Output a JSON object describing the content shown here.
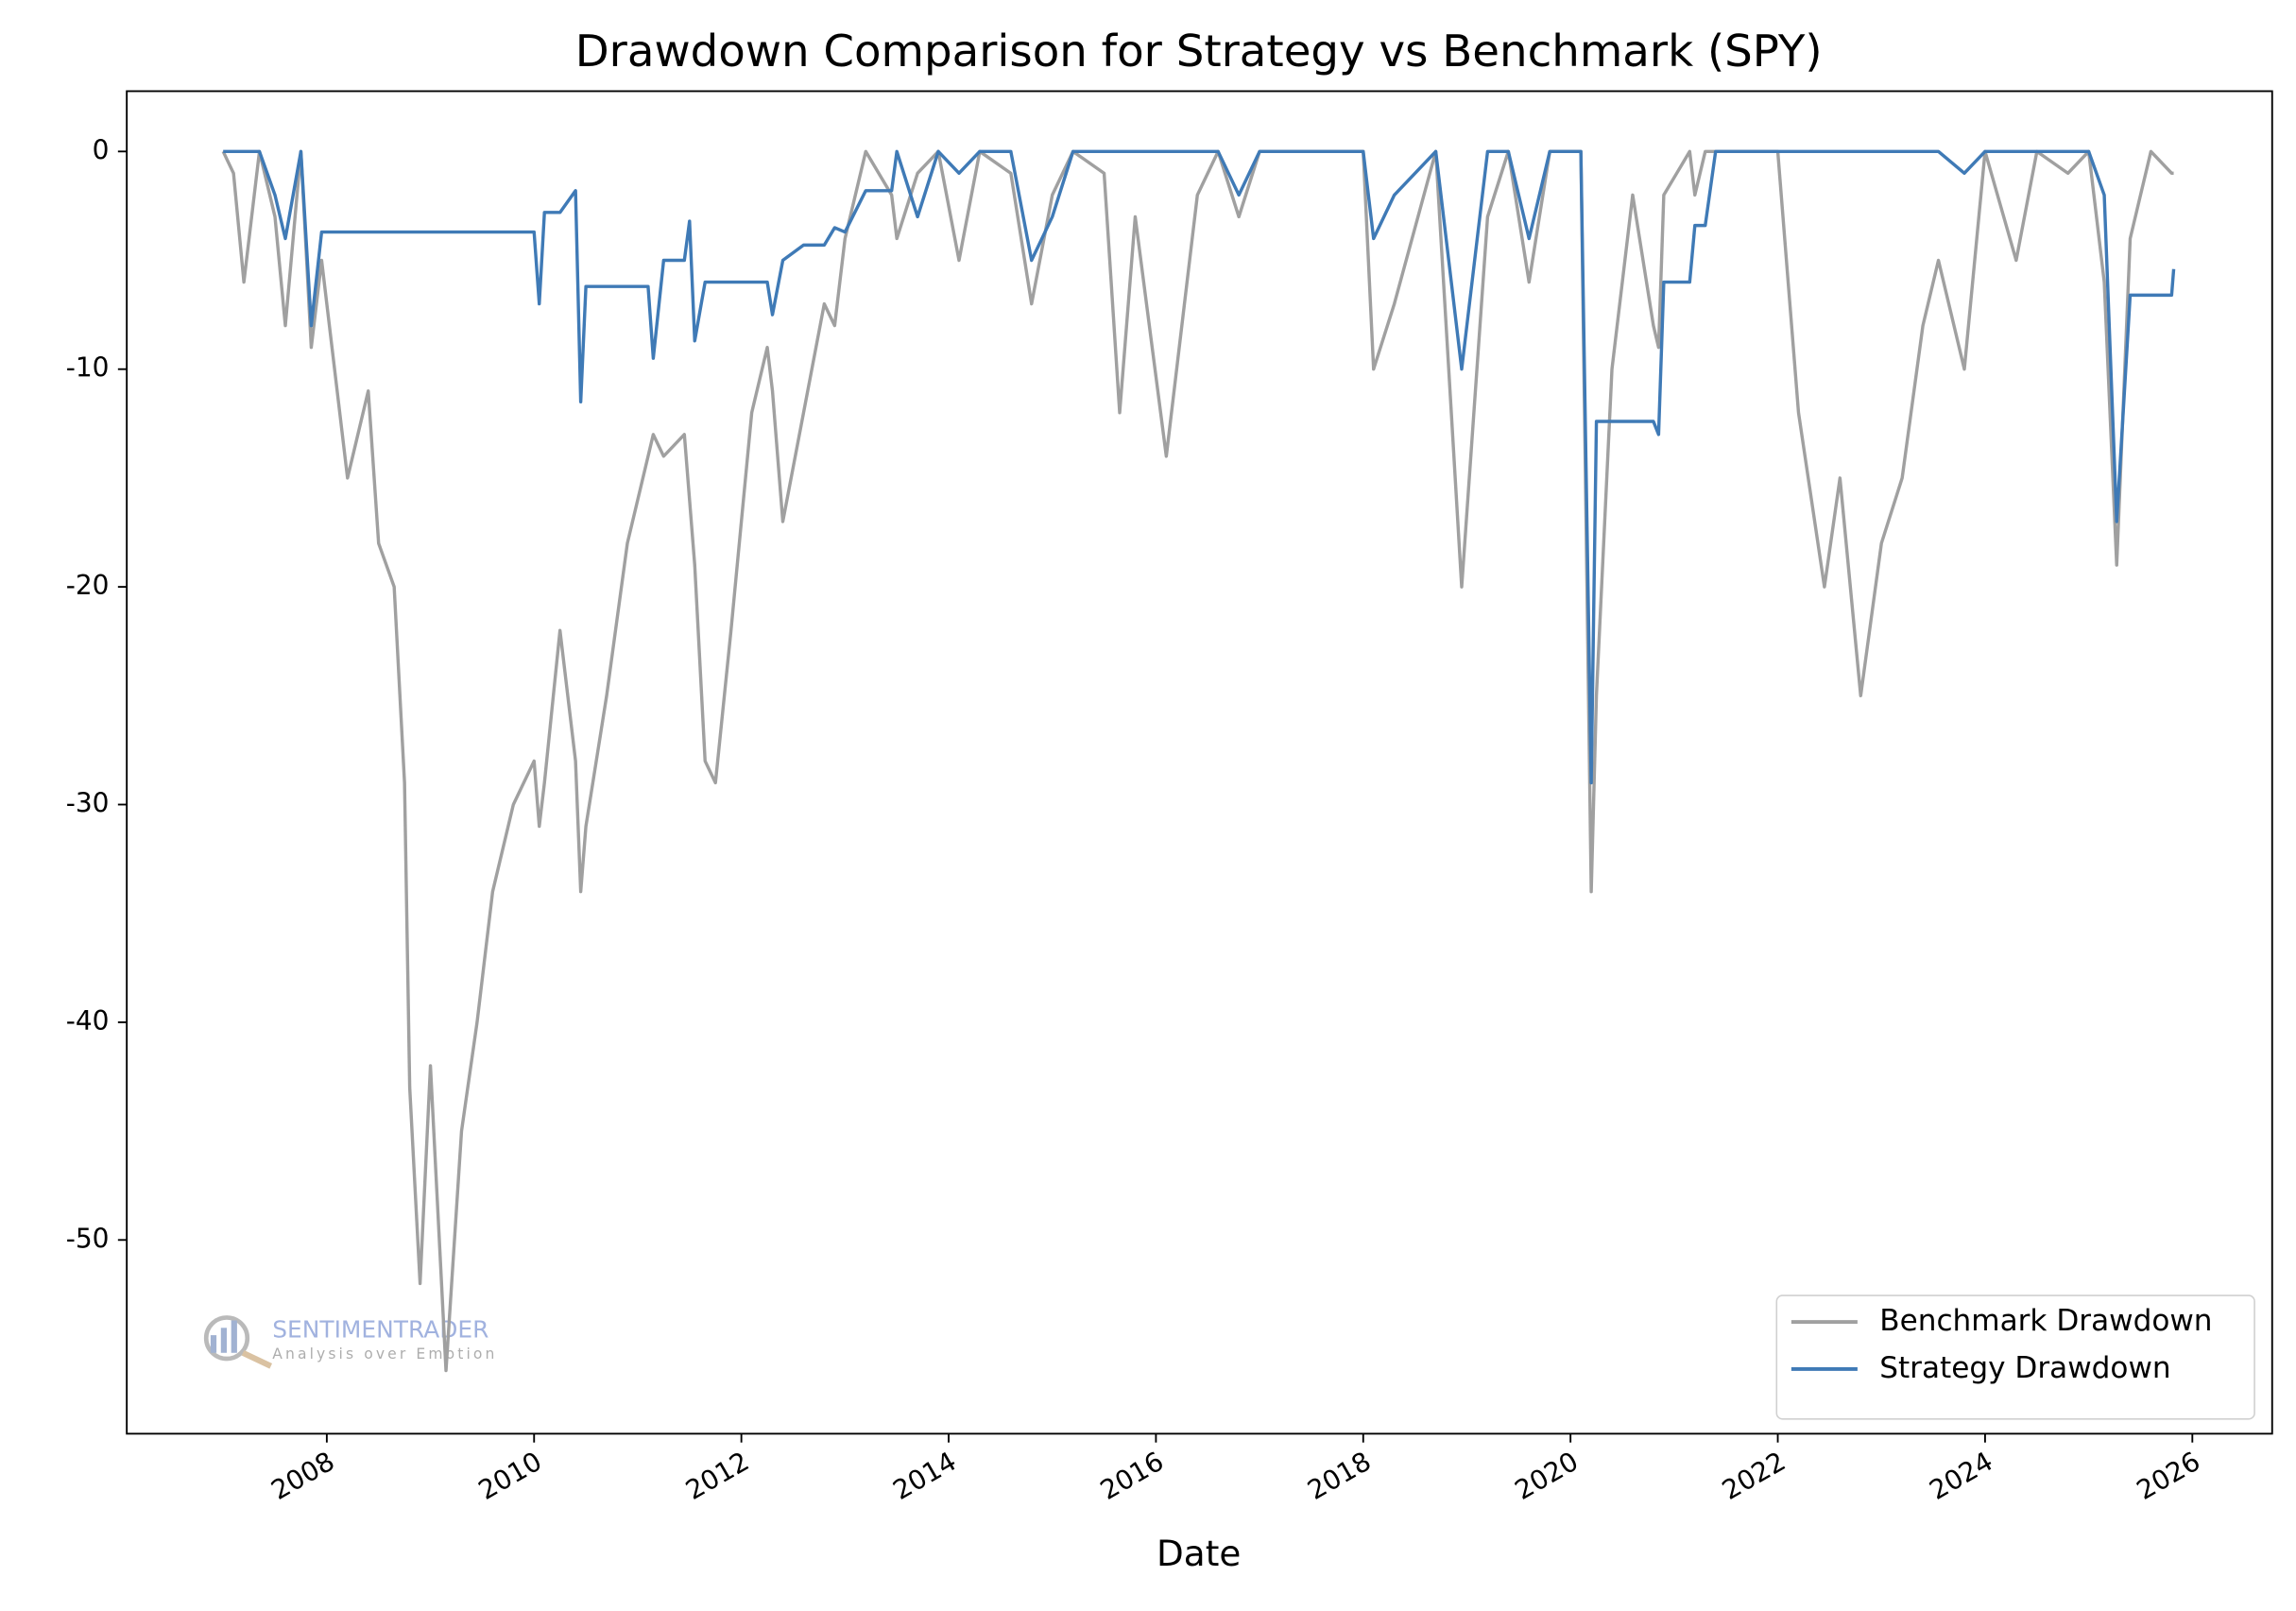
{
  "chart_data": {
    "type": "line",
    "title": "Drawdown Comparison for Strategy vs Benchmark (SPY)",
    "x_label": "Date",
    "watermark": {
      "brand": "SENTIMENTRADER",
      "tagline": "Analysis over Emotion"
    },
    "x": [
      2007.0,
      2007.1,
      2007.2,
      2007.35,
      2007.5,
      2007.6,
      2007.75,
      2007.85,
      2007.95,
      2008.2,
      2008.4,
      2008.5,
      2008.65,
      2008.75,
      2008.8,
      2008.9,
      2009.0,
      2009.15,
      2009.3,
      2009.45,
      2009.6,
      2009.8,
      2010.0,
      2010.05,
      2010.1,
      2010.25,
      2010.4,
      2010.45,
      2010.5,
      2010.7,
      2010.9,
      2011.1,
      2011.15,
      2011.25,
      2011.45,
      2011.5,
      2011.55,
      2011.65,
      2011.75,
      2011.9,
      2012.1,
      2012.25,
      2012.3,
      2012.4,
      2012.6,
      2012.8,
      2012.9,
      2013.0,
      2013.2,
      2013.45,
      2013.5,
      2013.7,
      2013.9,
      2014.1,
      2014.3,
      2014.6,
      2014.8,
      2015.0,
      2015.2,
      2015.5,
      2015.65,
      2015.8,
      2016.1,
      2016.4,
      2016.6,
      2016.8,
      2017.0,
      2017.5,
      2018.0,
      2018.1,
      2018.3,
      2018.7,
      2018.95,
      2019.2,
      2019.4,
      2019.6,
      2019.8,
      2020.1,
      2020.2,
      2020.25,
      2020.4,
      2020.6,
      2020.8,
      2020.85,
      2020.9,
      2021.15,
      2021.2,
      2021.3,
      2021.4,
      2021.8,
      2022.0,
      2022.2,
      2022.45,
      2022.6,
      2022.8,
      2023.0,
      2023.2,
      2023.4,
      2023.55,
      2023.8,
      2024.0,
      2024.3,
      2024.5,
      2024.8,
      2025.0,
      2025.15,
      2025.27,
      2025.4,
      2025.6,
      2025.8,
      2025.82
    ],
    "series": [
      {
        "name": "Benchmark Drawdown",
        "color": "#a0a0a0",
        "values": [
          0,
          -1,
          -6,
          0,
          -3,
          -8,
          0,
          -9,
          -5,
          -15,
          -11,
          -18,
          -20,
          -29,
          -43,
          -52,
          -42,
          -56,
          -45,
          -40,
          -34,
          -30,
          -28,
          -31,
          -29,
          -22,
          -28,
          -34,
          -31,
          -25,
          -18,
          -14,
          -13,
          -14,
          -13,
          -16,
          -19,
          -28,
          -29,
          -22,
          -12,
          -9,
          -11,
          -17,
          -12,
          -7,
          -8,
          -4,
          0,
          -2,
          -4,
          -1,
          0,
          -5,
          0,
          -1,
          -7,
          -2,
          0,
          -1,
          -12,
          -3,
          -14,
          -2,
          0,
          -3,
          0,
          0,
          0,
          -10,
          -7,
          0,
          -20,
          -3,
          0,
          -6,
          0,
          0,
          -34,
          -25,
          -10,
          -2,
          -8,
          -9,
          -2,
          0,
          -2,
          0,
          0,
          0,
          0,
          -12,
          -20,
          -15,
          -25,
          -18,
          -15,
          -8,
          -5,
          -10,
          0,
          -5,
          0,
          -1,
          0,
          -6,
          -19,
          -4,
          0,
          -1,
          -1
        ]
      },
      {
        "name": "Strategy Drawdown",
        "color": "#3f7ab6",
        "values": [
          0,
          0,
          0,
          0,
          -2,
          -4,
          0,
          -8,
          -3.7,
          -3.7,
          -3.7,
          -3.7,
          -3.7,
          -3.7,
          -3.7,
          -3.7,
          -3.7,
          -3.7,
          -3.7,
          -3.7,
          -3.7,
          -3.7,
          -3.7,
          -7,
          -2.8,
          -2.8,
          -1.8,
          -11.5,
          -6.2,
          -6.2,
          -6.2,
          -6.2,
          -9.5,
          -5,
          -5,
          -3.2,
          -8.7,
          -6,
          -6,
          -6,
          -6,
          -6,
          -7.5,
          -5,
          -4.3,
          -4.3,
          -3.5,
          -3.7,
          -1.8,
          -1.8,
          0,
          -3,
          0,
          -1,
          0,
          0,
          -5,
          -3,
          0,
          0,
          0,
          0,
          0,
          0,
          0,
          -2,
          0,
          0,
          0,
          -4,
          -2,
          0,
          -10,
          0,
          0,
          -4,
          0,
          0,
          -29,
          -12.4,
          -12.4,
          -12.4,
          -12.4,
          -13,
          -6,
          -6,
          -3.4,
          -3.4,
          0,
          0,
          0,
          0,
          0,
          0,
          0,
          0,
          0,
          0,
          0,
          -1,
          0,
          0,
          0,
          0,
          0,
          -2,
          -17,
          -6.6,
          -6.6,
          -6.6,
          -5.4
        ]
      }
    ],
    "xlim": [
      2006.07,
      2026.77
    ],
    "xticks": [
      2008,
      2010,
      2012,
      2014,
      2016,
      2018,
      2020,
      2022,
      2024,
      2026
    ],
    "ylim": [
      -58.9,
      2.77
    ],
    "yticks": [
      0,
      -10,
      -20,
      -30,
      -40,
      -50
    ],
    "grid": false,
    "legend": "lower right"
  }
}
